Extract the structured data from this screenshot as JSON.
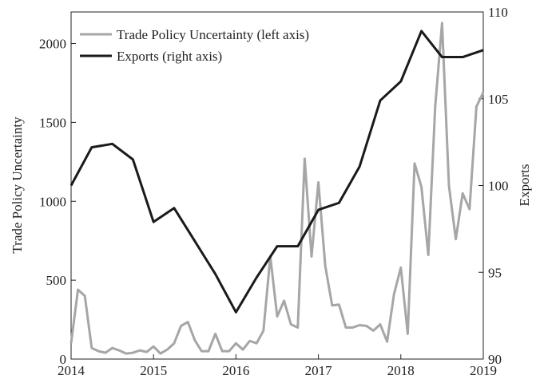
{
  "chart_data": {
    "type": "line",
    "xlim": [
      2014,
      2019
    ],
    "xticks": [
      2014,
      2015,
      2016,
      2017,
      2018,
      2019
    ],
    "ylim": [
      0,
      2200
    ],
    "yticks": [
      0,
      500,
      1000,
      1500,
      2000
    ],
    "y2lim": [
      90,
      110
    ],
    "y2ticks": [
      90,
      95,
      100,
      105,
      110
    ],
    "ylabel": "Trade Policy Uncertainty",
    "y2label": "Exports",
    "legend": "upper left",
    "series": [
      {
        "name": "Trade Policy Uncertainty (left axis)",
        "color": "#a6a6a6",
        "x": [
          2014,
          2014.0833,
          2014.1667,
          2014.25,
          2014.3333,
          2014.4167,
          2014.5,
          2014.5833,
          2014.6667,
          2014.75,
          2014.8333,
          2014.9167,
          2015,
          2015.0833,
          2015.1667,
          2015.25,
          2015.3333,
          2015.4167,
          2015.5,
          2015.5833,
          2015.6667,
          2015.75,
          2015.8333,
          2015.9167,
          2016,
          2016.0833,
          2016.1667,
          2016.25,
          2016.3333,
          2016.4167,
          2016.5,
          2016.5833,
          2016.6667,
          2016.75,
          2016.8333,
          2016.9167,
          2017,
          2017.0833,
          2017.1667,
          2017.25,
          2017.3333,
          2017.4167,
          2017.5,
          2017.5833,
          2017.6667,
          2017.75,
          2017.8333,
          2017.9167,
          2018,
          2018.0833,
          2018.1667,
          2018.25,
          2018.3333,
          2018.4167,
          2018.5,
          2018.5833,
          2018.6667,
          2018.75,
          2018.8333,
          2018.9167,
          2019
        ],
        "values": [
          100,
          440,
          400,
          70,
          50,
          40,
          70,
          55,
          35,
          40,
          55,
          45,
          80,
          35,
          60,
          100,
          210,
          235,
          120,
          50,
          50,
          160,
          50,
          50,
          100,
          60,
          115,
          100,
          180,
          650,
          270,
          370,
          220,
          200,
          1270,
          650,
          1120,
          590,
          340,
          345,
          200,
          200,
          215,
          210,
          180,
          220,
          110,
          410,
          580,
          160,
          1240,
          1090,
          660,
          1600,
          2130,
          1100,
          760,
          1050,
          950,
          1600,
          1690
        ]
      },
      {
        "name": "Exports (right axis)",
        "color": "#1a1a1a",
        "axis": "y2",
        "x": [
          2014,
          2014.25,
          2014.5,
          2014.75,
          2015,
          2015.25,
          2015.5,
          2015.75,
          2016,
          2016.25,
          2016.5,
          2016.75,
          2017,
          2017.25,
          2017.5,
          2017.75,
          2018,
          2018.25,
          2018.5,
          2018.75,
          2019
        ],
        "values": [
          100,
          102.2,
          102.4,
          101.5,
          97.9,
          98.7,
          96.8,
          94.9,
          92.7,
          94.7,
          96.5,
          96.5,
          98.6,
          99.0,
          101.1,
          104.9,
          106.0,
          108.9,
          107.4,
          107.4,
          107.8
        ]
      }
    ]
  }
}
